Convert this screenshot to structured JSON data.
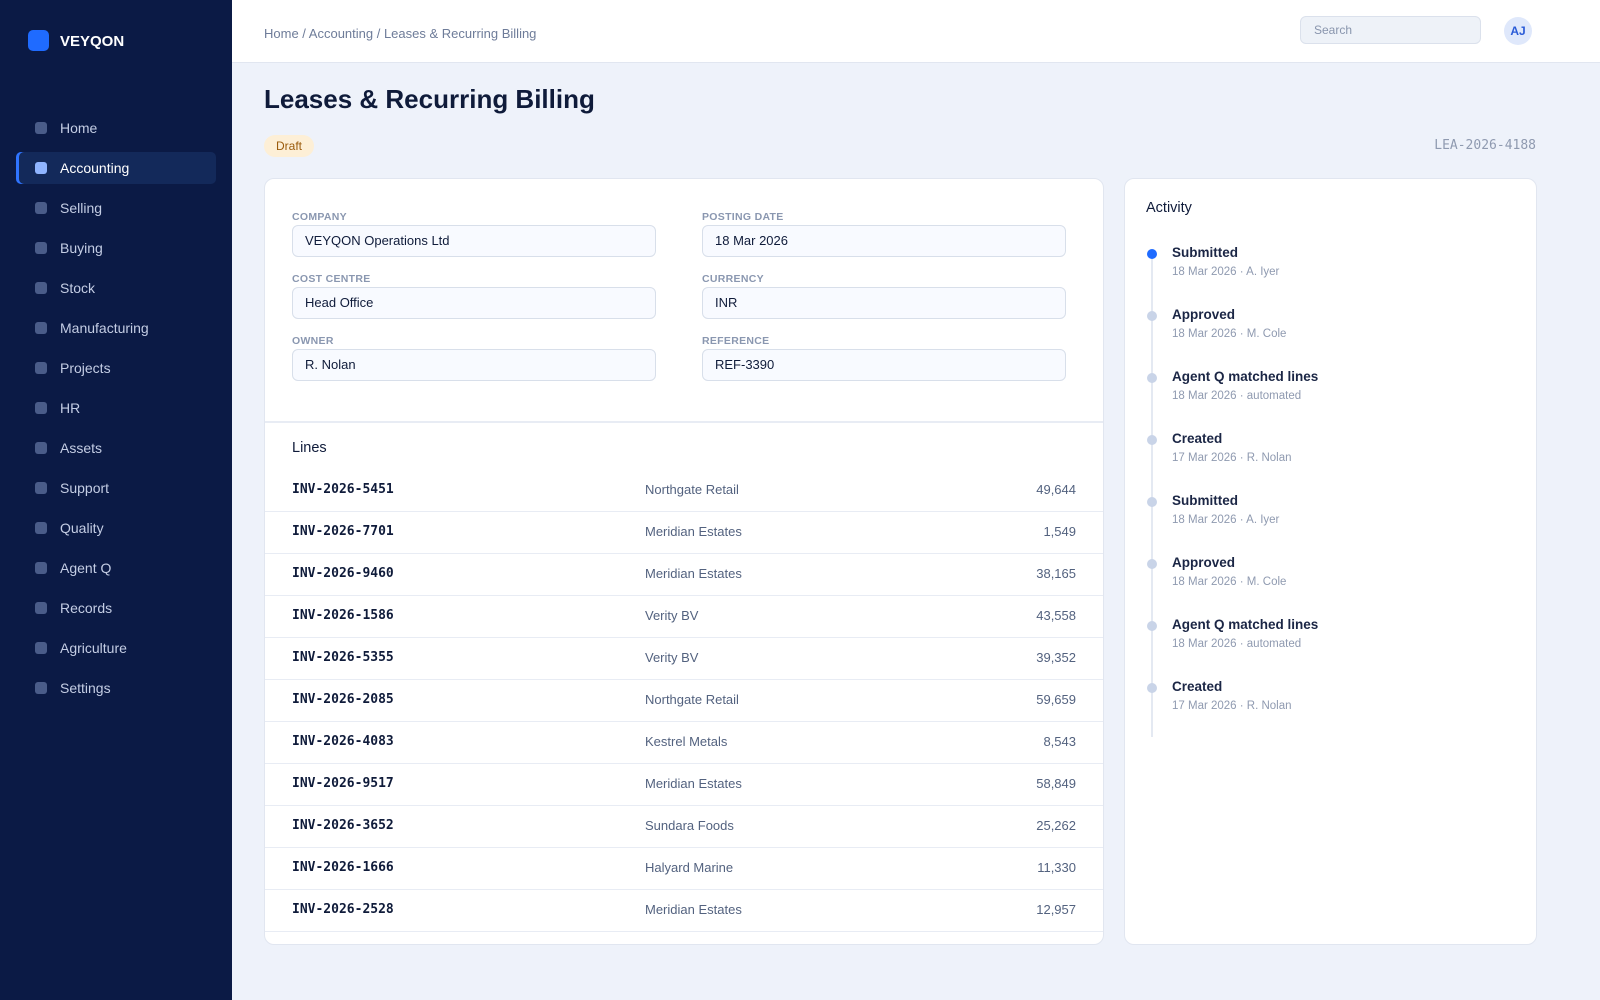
{
  "sidebar": {
    "brand": "VEYQON",
    "nav": [
      "Home",
      "Accounting",
      "Selling",
      "Buying",
      "Stock",
      "Manufacturing",
      "Projects",
      "HR",
      "Assets",
      "Support",
      "Quality",
      "Agent Q",
      "Records",
      "Agriculture",
      "Settings"
    ]
  },
  "header": {
    "breadcrumb": "Home / Accounting / Leases & Recurring Billing",
    "search": "Search",
    "avatar": "AJ"
  },
  "page": {
    "title": "Leases & Recurring Billing",
    "status": "Draft",
    "doc_id": "LEA-2026-4188"
  },
  "form": {
    "fields": [
      {
        "label": "COMPANY",
        "value": "VEYQON Operations Ltd"
      },
      {
        "label": "POSTING DATE",
        "value": "18 Mar 2026"
      },
      {
        "label": "COST CENTRE",
        "value": "Head Office"
      },
      {
        "label": "CURRENCY",
        "value": "INR"
      },
      {
        "label": "OWNER",
        "value": "R. Nolan"
      },
      {
        "label": "REFERENCE",
        "value": "REF-3390"
      }
    ]
  },
  "lines": {
    "title": "Lines",
    "rows": [
      [
        "INV-2026-5451",
        "Northgate Retail",
        "49,644"
      ],
      [
        "INV-2026-7701",
        "Meridian Estates",
        "1,549"
      ],
      [
        "INV-2026-9460",
        "Meridian Estates",
        "38,165"
      ],
      [
        "INV-2026-1586",
        "Verity BV",
        "43,558"
      ],
      [
        "INV-2026-5355",
        "Verity BV",
        "39,352"
      ],
      [
        "INV-2026-2085",
        "Northgate Retail",
        "59,659"
      ],
      [
        "INV-2026-4083",
        "Kestrel Metals",
        "8,543"
      ],
      [
        "INV-2026-9517",
        "Meridian Estates",
        "58,849"
      ],
      [
        "INV-2026-3652",
        "Sundara Foods",
        "25,262"
      ],
      [
        "INV-2026-1666",
        "Halyard Marine",
        "11,330"
      ],
      [
        "INV-2026-2528",
        "Meridian Estates",
        "12,957"
      ]
    ]
  },
  "activity": {
    "title": "Activity",
    "items": [
      {
        "event": "Submitted",
        "meta": "18 Mar 2026 · A. Iyer"
      },
      {
        "event": "Approved",
        "meta": "18 Mar 2026 · M. Cole"
      },
      {
        "event": "Agent Q matched lines",
        "meta": "18 Mar 2026 · automated"
      },
      {
        "event": "Created",
        "meta": "17 Mar 2026 · R. Nolan"
      },
      {
        "event": "Submitted",
        "meta": "18 Mar 2026 · A. Iyer"
      },
      {
        "event": "Approved",
        "meta": "18 Mar 2026 · M. Cole"
      },
      {
        "event": "Agent Q matched lines",
        "meta": "18 Mar 2026 · automated"
      },
      {
        "event": "Created",
        "meta": "17 Mar 2026 · R. Nolan"
      }
    ]
  }
}
